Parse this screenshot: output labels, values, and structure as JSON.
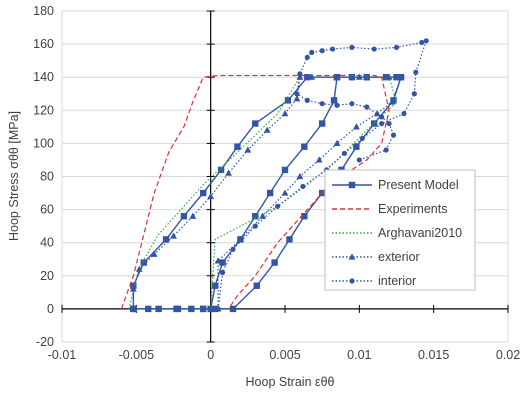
{
  "chart_data": {
    "type": "line",
    "xlabel": "Hoop Strain εθθ",
    "ylabel": "Hoop Stress σθθ [MPa]",
    "xlim": [
      -0.01,
      0.02
    ],
    "ylim": [
      -20,
      180
    ],
    "xticks": [
      -0.01,
      -0.005,
      0,
      0.005,
      0.01,
      0.015,
      0.02
    ],
    "xtick_labels": [
      "-0.01",
      "-0.005",
      "0",
      "0.005",
      "0.01",
      "0.015",
      "0.02"
    ],
    "yticks": [
      -20,
      0,
      20,
      40,
      60,
      80,
      100,
      120,
      140,
      160,
      180
    ],
    "ytick_labels": [
      "-20",
      "0",
      "20",
      "40",
      "60",
      "80",
      "100",
      "120",
      "140",
      "160",
      "180"
    ],
    "grid": "horizontal",
    "legend_position": "bottom-right",
    "series": [
      {
        "name": "Present Model",
        "color": "#3355a5",
        "dash": "solid",
        "marker": "square",
        "points": [
          [
            -0.0052,
            0
          ],
          [
            -0.0035,
            0
          ],
          [
            -0.0023,
            0
          ],
          [
            -0.0013,
            0
          ],
          [
            -0.0005,
            0
          ],
          [
            0,
            0
          ],
          [
            0.0003,
            14
          ],
          [
            0.0008,
            28
          ],
          [
            0.002,
            42
          ],
          [
            0.003,
            56
          ],
          [
            0.004,
            70
          ],
          [
            0.005,
            84
          ],
          [
            0.0063,
            98
          ],
          [
            0.0075,
            112
          ],
          [
            0.0083,
            126
          ],
          [
            0.0085,
            140
          ],
          [
            0.0095,
            140
          ],
          [
            0.0105,
            140
          ],
          [
            0.0118,
            140
          ],
          [
            0.0125,
            140
          ],
          [
            0.0128,
            140
          ],
          [
            0.0123,
            126
          ],
          [
            0.011,
            112
          ],
          [
            0.0098,
            98
          ],
          [
            0.0088,
            84
          ],
          [
            0.0075,
            70
          ],
          [
            0.0063,
            56
          ],
          [
            0.0053,
            42
          ],
          [
            0.0043,
            28
          ],
          [
            0.0031,
            14
          ],
          [
            0.0015,
            0
          ],
          [
            0.0003,
            0
          ],
          [
            -0.0005,
            0
          ],
          [
            -0.0022,
            0
          ],
          [
            -0.0042,
            0
          ],
          [
            -0.0052,
            0
          ],
          [
            -0.0052,
            14
          ],
          [
            -0.0045,
            28
          ],
          [
            -0.003,
            42
          ],
          [
            -0.0018,
            56
          ],
          [
            -0.0005,
            70
          ],
          [
            0.0007,
            84
          ],
          [
            0.0018,
            98
          ],
          [
            0.003,
            112
          ],
          [
            0.0052,
            126
          ],
          [
            0.0065,
            140
          ],
          [
            0.0085,
            140
          ],
          [
            0.0105,
            140
          ],
          [
            0.0128,
            140
          ]
        ]
      },
      {
        "name": "Experiments",
        "color": "#e03030",
        "dash": "dashed",
        "marker": "none",
        "points": [
          [
            -0.006,
            0
          ],
          [
            -0.0058,
            5
          ],
          [
            -0.0052,
            20
          ],
          [
            -0.0045,
            45
          ],
          [
            -0.0038,
            70
          ],
          [
            -0.0028,
            95
          ],
          [
            -0.0018,
            110
          ],
          [
            -0.0012,
            125
          ],
          [
            -0.0005,
            140
          ],
          [
            0.0005,
            141
          ],
          [
            0.004,
            141
          ],
          [
            0.008,
            141
          ],
          [
            0.011,
            141
          ],
          [
            0.0115,
            140
          ],
          [
            0.012,
            120
          ],
          [
            0.0115,
            100
          ],
          [
            0.0105,
            90
          ],
          [
            0.008,
            75
          ],
          [
            0.006,
            55
          ],
          [
            0.0045,
            40
          ],
          [
            0.003,
            20
          ],
          [
            0.0018,
            8
          ],
          [
            0.0012,
            0
          ]
        ]
      },
      {
        "name": "Arghavani2010",
        "color": "#33a840",
        "dash": "dotted",
        "marker": "none",
        "points": [
          [
            -0.0055,
            0
          ],
          [
            -0.0048,
            25
          ],
          [
            -0.0035,
            45
          ],
          [
            -0.002,
            60
          ],
          [
            -0.0005,
            75
          ],
          [
            0.0015,
            92
          ],
          [
            0.003,
            105
          ],
          [
            0.0045,
            118
          ],
          [
            0.006,
            140
          ],
          [
            0.012,
            140
          ],
          [
            0.0125,
            125
          ],
          [
            0.0105,
            108
          ],
          [
            0.0085,
            90
          ],
          [
            0.0065,
            75
          ],
          [
            0.0045,
            62
          ],
          [
            0.002,
            50
          ],
          [
            0.0003,
            42
          ],
          [
            0,
            0
          ]
        ]
      },
      {
        "name": "exterior",
        "color": "#3355a5",
        "dash": "dotted",
        "marker": "triangle",
        "points": [
          [
            0.0005,
            0
          ],
          [
            0.0005,
            29
          ],
          [
            0.002,
            42
          ],
          [
            0.0035,
            56
          ],
          [
            0.005,
            70
          ],
          [
            0.006,
            80
          ],
          [
            0.0073,
            90
          ],
          [
            0.0085,
            100
          ],
          [
            0.0098,
            110
          ],
          [
            0.0112,
            118
          ],
          [
            0.0122,
            125
          ],
          [
            0.0128,
            140
          ],
          [
            0.012,
            140
          ],
          [
            0.01,
            140
          ],
          [
            0.0085,
            140
          ],
          [
            0.0068,
            140
          ],
          [
            0.006,
            140
          ],
          [
            0.0058,
            127
          ],
          [
            0.005,
            118
          ],
          [
            0.0038,
            108
          ],
          [
            0.0025,
            96
          ],
          [
            0.0012,
            82
          ],
          [
            0.0,
            68
          ],
          [
            -0.0012,
            56
          ],
          [
            -0.0025,
            44
          ],
          [
            -0.0038,
            33
          ],
          [
            -0.0048,
            24
          ],
          [
            -0.0052,
            12
          ],
          [
            -0.0052,
            0
          ]
        ]
      },
      {
        "name": "interior",
        "color": "#3355a5",
        "dash": "dotted",
        "marker": "circle",
        "points": [
          [
            0.0005,
            0
          ],
          [
            0.0008,
            22
          ],
          [
            0.0015,
            36
          ],
          [
            0.003,
            50
          ],
          [
            0.0045,
            62
          ],
          [
            0.0062,
            74
          ],
          [
            0.0078,
            84
          ],
          [
            0.009,
            94
          ],
          [
            0.0102,
            103
          ],
          [
            0.0115,
            112
          ],
          [
            0.013,
            118
          ],
          [
            0.0137,
            130
          ],
          [
            0.0138,
            143
          ],
          [
            0.0145,
            162
          ],
          [
            0.0142,
            161
          ],
          [
            0.0125,
            158
          ],
          [
            0.011,
            157
          ],
          [
            0.0095,
            158
          ],
          [
            0.0082,
            157
          ],
          [
            0.0075,
            156
          ],
          [
            0.0068,
            155
          ],
          [
            0.0065,
            152
          ],
          [
            0.006,
            142
          ],
          [
            0.0058,
            130
          ],
          [
            0.0065,
            126
          ],
          [
            0.0075,
            124
          ],
          [
            0.0085,
            123
          ],
          [
            0.0095,
            124
          ],
          [
            0.0105,
            122
          ],
          [
            0.0115,
            116
          ],
          [
            0.012,
            112
          ],
          [
            0.0123,
            105
          ],
          [
            0.0118,
            96
          ],
          [
            0.01,
            90
          ]
        ]
      }
    ]
  }
}
